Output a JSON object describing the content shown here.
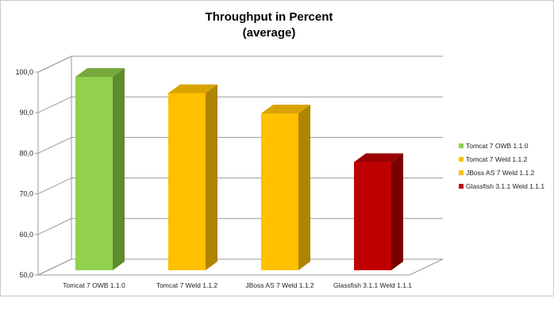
{
  "chart_data": {
    "type": "bar",
    "style": "3d-column",
    "title_lines": [
      "Throughput in Percent",
      "(average)"
    ],
    "categories": [
      "Tomcat 7 OWB 1.1.0",
      "Tomcat 7 Weld 1.1.2",
      "JBoss AS 7 Weld 1.1.2",
      "Glassfish 3.1.1 Weld 1.1.1"
    ],
    "values": [
      100,
      96,
      91,
      79
    ],
    "y_ticks": [
      "50,0",
      "60,0",
      "70,0",
      "80,0",
      "90,0",
      "100,0"
    ],
    "ylim": [
      50,
      100
    ],
    "grid": true,
    "legend_position": "right",
    "legend": [
      {
        "label": "Tomcat 7 OWB 1.1.0",
        "color": "#92d050"
      },
      {
        "label": "Tomcat 7 Weld 1.1.2",
        "color": "#ffc000"
      },
      {
        "label": "JBoss AS 7 Weld 1.1.2",
        "color": "#ffc000"
      },
      {
        "label": "Glassfish 3.1.1 Weld 1.1.1",
        "color": "#c00000"
      }
    ],
    "bar_colors": [
      {
        "front": "#92d050",
        "side": "#5e8b2e",
        "top": "#76a83c"
      },
      {
        "front": "#ffc000",
        "side": "#b08400",
        "top": "#d9a300"
      },
      {
        "front": "#ffc000",
        "side": "#b08400",
        "top": "#d9a300"
      },
      {
        "front": "#c00000",
        "side": "#7a0000",
        "top": "#9a0000"
      }
    ]
  }
}
